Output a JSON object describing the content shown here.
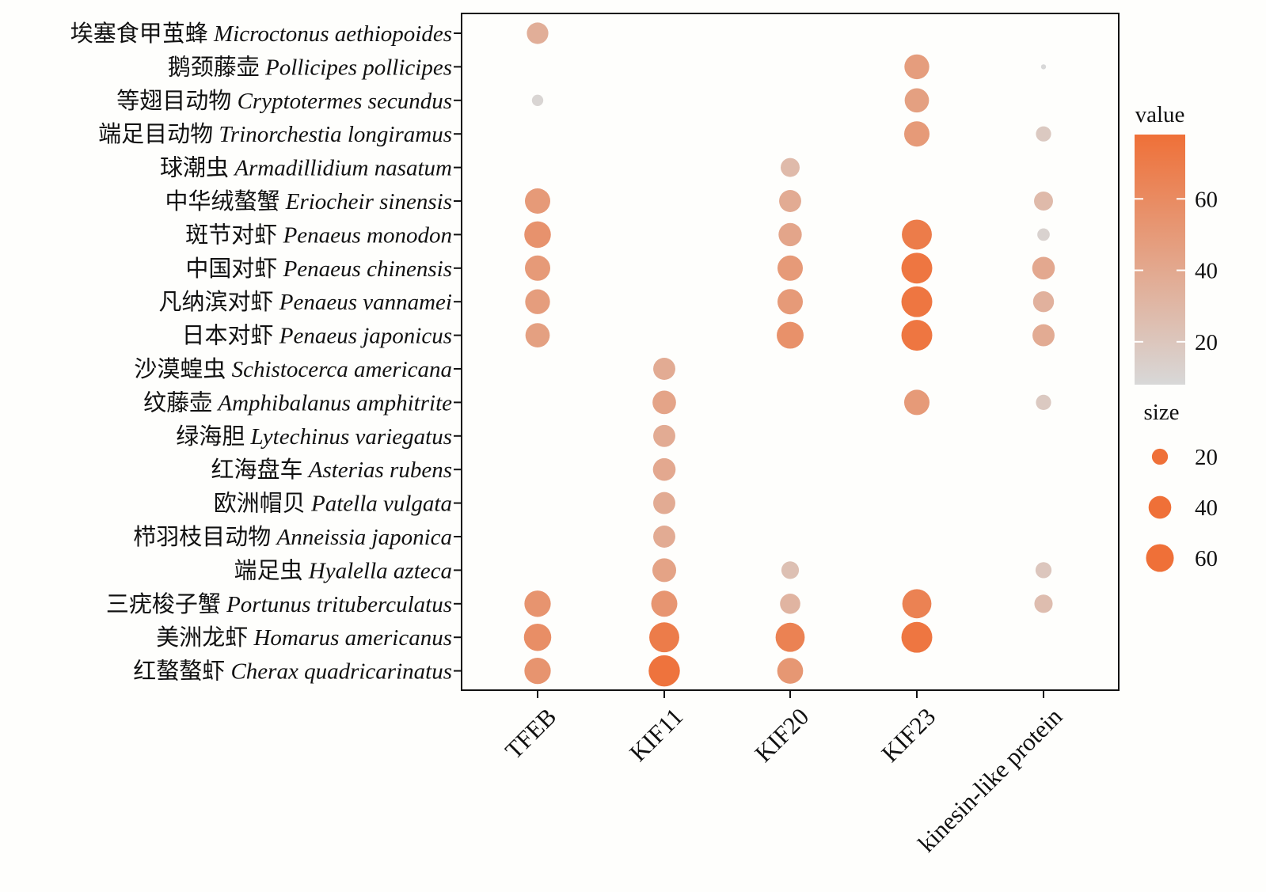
{
  "chart_data": {
    "type": "scatter",
    "subtype": "bubble-matrix",
    "title": "",
    "xlabel": "",
    "ylabel": "",
    "categories_x": [
      "TFEB",
      "KIF11",
      "KIF20",
      "KIF23",
      "kinesin-like protein"
    ],
    "categories_y": [
      {
        "zh": "埃塞食甲茧蜂",
        "latin": "Microctonus aethiopoides"
      },
      {
        "zh": "鹅颈藤壶",
        "latin": "Pollicipes pollicipes"
      },
      {
        "zh": "等翅目动物",
        "latin": "Cryptotermes secundus"
      },
      {
        "zh": "端足目动物",
        "latin": "Trinorchestia longiramus"
      },
      {
        "zh": "球潮虫",
        "latin": "Armadillidium nasatum"
      },
      {
        "zh": "中华绒螯蟹",
        "latin": "Eriocheir sinensis"
      },
      {
        "zh": "斑节对虾",
        "latin": "Penaeus monodon"
      },
      {
        "zh": "中国对虾",
        "latin": "Penaeus chinensis"
      },
      {
        "zh": "凡纳滨对虾",
        "latin": "Penaeus vannamei"
      },
      {
        "zh": "日本对虾",
        "latin": "Penaeus japonicus"
      },
      {
        "zh": "沙漠蝗虫",
        "latin": "Schistocerca americana"
      },
      {
        "zh": "纹藤壶",
        "latin": "Amphibalanus amphitrite"
      },
      {
        "zh": "绿海胆",
        "latin": "Lytechinus variegatus"
      },
      {
        "zh": "红海盘车",
        "latin": "Asterias rubens"
      },
      {
        "zh": "欧洲帽贝",
        "latin": "Patella vulgata"
      },
      {
        "zh": "栉羽枝目动物",
        "latin": "Anneissia japonica"
      },
      {
        "zh": "端足虫",
        "latin": "Hyalella azteca"
      },
      {
        "zh": "三疣梭子蟹",
        "latin": "Portunus trituberculatus"
      },
      {
        "zh": "美洲龙虾",
        "latin": "Homarus americanus"
      },
      {
        "zh": "红螯螯虾",
        "latin": "Cherax quadricarinatus"
      }
    ],
    "points": [
      {
        "x": "TFEB",
        "y": 0,
        "value": 36
      },
      {
        "x": "TFEB",
        "y": 2,
        "value": 10
      },
      {
        "x": "TFEB",
        "y": 5,
        "value": 50
      },
      {
        "x": "TFEB",
        "y": 6,
        "value": 55
      },
      {
        "x": "TFEB",
        "y": 7,
        "value": 50
      },
      {
        "x": "TFEB",
        "y": 8,
        "value": 48
      },
      {
        "x": "TFEB",
        "y": 9,
        "value": 46
      },
      {
        "x": "TFEB",
        "y": 17,
        "value": 54
      },
      {
        "x": "TFEB",
        "y": 18,
        "value": 58
      },
      {
        "x": "TFEB",
        "y": 19,
        "value": 54
      },
      {
        "x": "KIF11",
        "y": 10,
        "value": 38
      },
      {
        "x": "KIF11",
        "y": 11,
        "value": 43
      },
      {
        "x": "KIF11",
        "y": 12,
        "value": 38
      },
      {
        "x": "KIF11",
        "y": 13,
        "value": 40
      },
      {
        "x": "KIF11",
        "y": 14,
        "value": 38
      },
      {
        "x": "KIF11",
        "y": 15,
        "value": 38
      },
      {
        "x": "KIF11",
        "y": 16,
        "value": 44
      },
      {
        "x": "KIF11",
        "y": 17,
        "value": 53
      },
      {
        "x": "KIF11",
        "y": 18,
        "value": 70
      },
      {
        "x": "KIF11",
        "y": 19,
        "value": 76
      },
      {
        "x": "KIF20",
        "y": 4,
        "value": 28
      },
      {
        "x": "KIF20",
        "y": 5,
        "value": 38
      },
      {
        "x": "KIF20",
        "y": 6,
        "value": 42
      },
      {
        "x": "KIF20",
        "y": 7,
        "value": 50
      },
      {
        "x": "KIF20",
        "y": 8,
        "value": 50
      },
      {
        "x": "KIF20",
        "y": 9,
        "value": 56
      },
      {
        "x": "KIF20",
        "y": 16,
        "value": 24
      },
      {
        "x": "KIF20",
        "y": 17,
        "value": 32
      },
      {
        "x": "KIF20",
        "y": 18,
        "value": 66
      },
      {
        "x": "KIF20",
        "y": 19,
        "value": 52
      },
      {
        "x": "KIF23",
        "y": 1,
        "value": 48
      },
      {
        "x": "KIF23",
        "y": 2,
        "value": 46
      },
      {
        "x": "KIF23",
        "y": 3,
        "value": 50
      },
      {
        "x": "KIF23",
        "y": 6,
        "value": 70
      },
      {
        "x": "KIF23",
        "y": 7,
        "value": 74
      },
      {
        "x": "KIF23",
        "y": 8,
        "value": 74
      },
      {
        "x": "KIF23",
        "y": 9,
        "value": 74
      },
      {
        "x": "KIF23",
        "y": 11,
        "value": 50
      },
      {
        "x": "KIF23",
        "y": 17,
        "value": 66
      },
      {
        "x": "KIF23",
        "y": 18,
        "value": 74
      },
      {
        "x": "kinesin-like protein",
        "y": 1,
        "value": 2
      },
      {
        "x": "kinesin-like protein",
        "y": 3,
        "value": 18
      },
      {
        "x": "kinesin-like protein",
        "y": 5,
        "value": 28
      },
      {
        "x": "kinesin-like protein",
        "y": 6,
        "value": 12
      },
      {
        "x": "kinesin-like protein",
        "y": 7,
        "value": 40
      },
      {
        "x": "kinesin-like protein",
        "y": 8,
        "value": 34
      },
      {
        "x": "kinesin-like protein",
        "y": 9,
        "value": 38
      },
      {
        "x": "kinesin-like protein",
        "y": 11,
        "value": 18
      },
      {
        "x": "kinesin-like protein",
        "y": 16,
        "value": 20
      },
      {
        "x": "kinesin-like protein",
        "y": 17,
        "value": 26
      }
    ],
    "color_scale": {
      "title": "value",
      "low_color": "#d8d8d8",
      "high_color": "#ef7038",
      "range": [
        8,
        78
      ],
      "ticks": [
        20,
        40,
        60
      ]
    },
    "size_scale": {
      "title": "size",
      "range": [
        0,
        78
      ],
      "legend_values": [
        20,
        40,
        60
      ]
    },
    "legend_position": "right",
    "grid": false
  }
}
